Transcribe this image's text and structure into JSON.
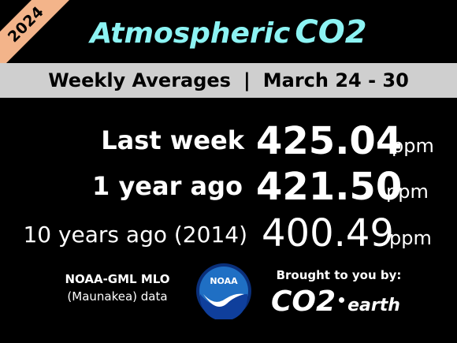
{
  "ribbon": {
    "year": "2024",
    "color": "#f3b48a"
  },
  "title": {
    "text": "Atmospheric",
    "highlight": "CO2",
    "color": "#8cf3f3"
  },
  "banner": {
    "left": "Weekly Averages",
    "separator": "|",
    "right": "March 24 - 30"
  },
  "rows": [
    {
      "label": "Last week",
      "value": "425.04",
      "unit": "ppm"
    },
    {
      "label": "1 year ago",
      "value": "421.50",
      "unit": "ppm"
    },
    {
      "label": "10 years ago (2014)",
      "value": "400.49",
      "unit": "ppm"
    }
  ],
  "source": {
    "line1": "NOAA-GML MLO",
    "line2": "(Maunakea) data"
  },
  "noaa_logo": {
    "text": "NOAA",
    "colors": {
      "sky": "#1f6fc4",
      "ring": "#0a2f7a",
      "ocean": "#0f3f9c",
      "bird": "#ffffff"
    }
  },
  "sponsor": {
    "by": "Brought to you by:",
    "brand_co2": "CO2",
    "brand_earth": "earth"
  }
}
